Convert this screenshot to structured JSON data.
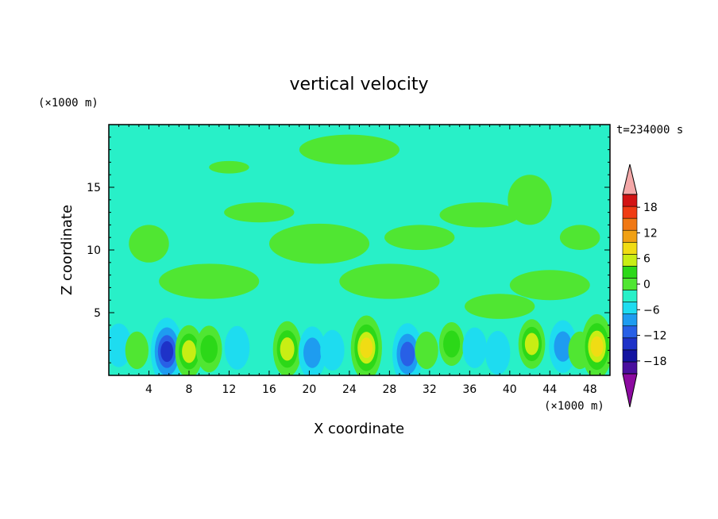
{
  "chart_data": {
    "type": "heatmap",
    "title": "vertical velocity",
    "xlabel": "X coordinate",
    "ylabel": "Z coordinate",
    "x_unit": "(×1000 m)",
    "y_unit": "(×1000 m)",
    "time_label": "t=234000 s",
    "xlim": [
      0,
      50
    ],
    "ylim": [
      0,
      20
    ],
    "x_ticks": [
      4,
      8,
      12,
      16,
      20,
      24,
      28,
      32,
      36,
      40,
      44,
      48
    ],
    "y_ticks": [
      5,
      10,
      15
    ],
    "colorbar": {
      "levels": [
        -21,
        -18,
        -15,
        -12,
        -9,
        -6,
        -3,
        0,
        3,
        6,
        9,
        12,
        15,
        18,
        21
      ],
      "tick_labels": [
        18,
        12,
        6,
        0,
        -6,
        -12,
        -18
      ],
      "colors": [
        "#4a0f9e",
        "#1414a0",
        "#1e32c8",
        "#2860e6",
        "#1e9cf0",
        "#1edcf0",
        "#28f0c8",
        "#50e632",
        "#2cd818",
        "#c8ee14",
        "#f0dc14",
        "#f0a014",
        "#f07814",
        "#f03c14",
        "#d21414"
      ],
      "under_color": "#8c0aa0",
      "over_color": "#f4a8a8"
    },
    "field": {
      "background_value": -1,
      "upper_regions": [
        {
          "xc": 24,
          "zc": 18.0,
          "sx": 5.0,
          "sz": 1.2,
          "value": 1
        },
        {
          "xc": 12,
          "zc": 16.6,
          "sx": 2.0,
          "sz": 0.5,
          "value": 1
        },
        {
          "xc": 15,
          "zc": 13.0,
          "sx": 3.5,
          "sz": 0.8,
          "value": 1
        },
        {
          "xc": 21,
          "zc": 10.5,
          "sx": 5.0,
          "sz": 1.6,
          "value": 1
        },
        {
          "xc": 31,
          "zc": 11.0,
          "sx": 3.5,
          "sz": 1.0,
          "value": 1
        },
        {
          "xc": 37,
          "zc": 12.8,
          "sx": 4.0,
          "sz": 1.0,
          "value": 1
        },
        {
          "xc": 42,
          "zc": 14.0,
          "sx": 2.2,
          "sz": 2.0,
          "value": 1
        },
        {
          "xc": 47,
          "zc": 11.0,
          "sx": 2.0,
          "sz": 1.0,
          "value": 1
        },
        {
          "xc": 4,
          "zc": 10.5,
          "sx": 2.0,
          "sz": 1.5,
          "value": 1
        },
        {
          "xc": 10,
          "zc": 7.5,
          "sx": 5.0,
          "sz": 1.4,
          "value": 1
        },
        {
          "xc": 28,
          "zc": 7.5,
          "sx": 5.0,
          "sz": 1.4,
          "value": 1
        },
        {
          "xc": 44,
          "zc": 7.2,
          "sx": 4.0,
          "sz": 1.2,
          "value": 1
        },
        {
          "xc": 39,
          "zc": 5.5,
          "sx": 3.5,
          "sz": 1.0,
          "value": 1
        }
      ],
      "cells": [
        {
          "xc": 1.0,
          "zc": 2.4,
          "amp": -5
        },
        {
          "xc": 2.8,
          "zc": 2.0,
          "amp": 3
        },
        {
          "xc": 5.8,
          "zc": 1.9,
          "amp": -13
        },
        {
          "xc": 8.0,
          "zc": 1.9,
          "amp": 8
        },
        {
          "xc": 10.0,
          "zc": 2.1,
          "amp": 6
        },
        {
          "xc": 12.8,
          "zc": 2.2,
          "amp": -5
        },
        {
          "xc": 15.5,
          "zc": 2.0,
          "amp": -3
        },
        {
          "xc": 17.8,
          "zc": 2.1,
          "amp": 9
        },
        {
          "xc": 20.3,
          "zc": 1.8,
          "amp": -8
        },
        {
          "xc": 22.3,
          "zc": 2.0,
          "amp": -4
        },
        {
          "xc": 25.7,
          "zc": 2.2,
          "amp": 12
        },
        {
          "xc": 29.8,
          "zc": 1.7,
          "amp": -11
        },
        {
          "xc": 31.7,
          "zc": 2.0,
          "amp": 3
        },
        {
          "xc": 34.2,
          "zc": 2.5,
          "amp": 5
        },
        {
          "xc": 36.5,
          "zc": 2.2,
          "amp": -4
        },
        {
          "xc": 38.8,
          "zc": 1.8,
          "amp": -5
        },
        {
          "xc": 42.2,
          "zc": 2.5,
          "amp": 7
        },
        {
          "xc": 45.3,
          "zc": 2.3,
          "amp": -8
        },
        {
          "xc": 47.0,
          "zc": 2.0,
          "amp": 3
        },
        {
          "xc": 48.7,
          "zc": 2.3,
          "amp": 12
        }
      ]
    }
  }
}
